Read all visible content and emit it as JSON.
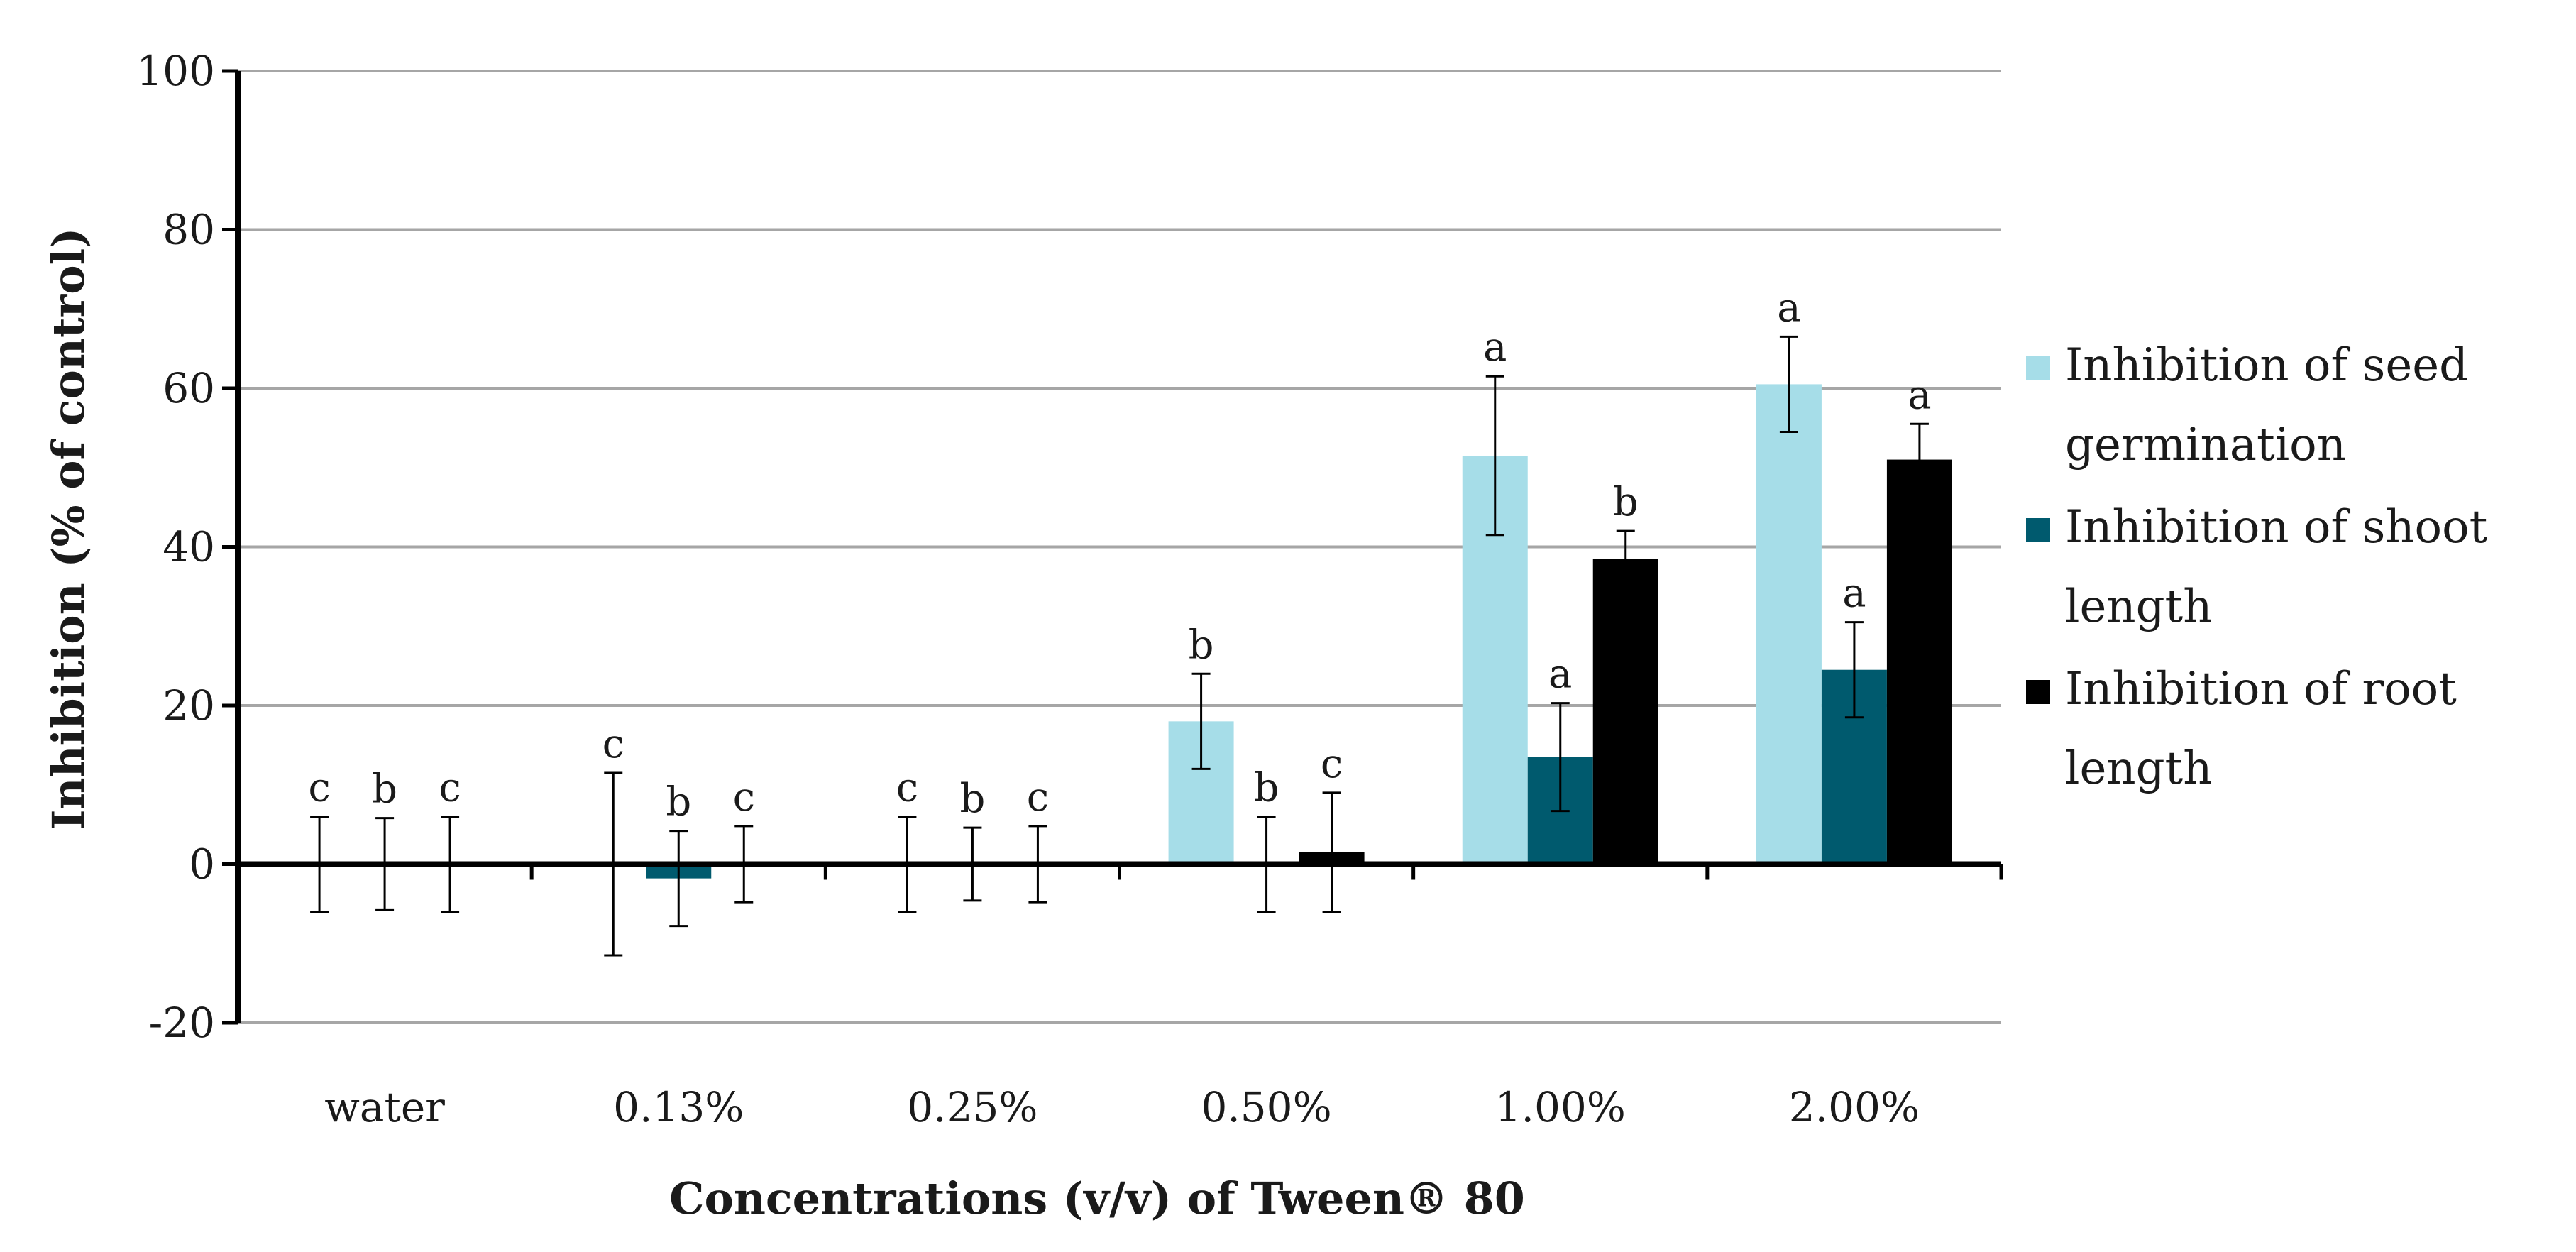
{
  "chart_data": {
    "type": "bar",
    "title": "",
    "xlabel": "Concentrations (v/v) of Tween® 80",
    "ylabel": "Inhibition (% of control)",
    "ylim": [
      -20,
      100
    ],
    "yticks": [
      -20,
      0,
      20,
      40,
      60,
      80,
      100
    ],
    "ytick_labels": [
      "-20",
      "0",
      "20",
      "40",
      "60",
      "80",
      "100"
    ],
    "grid": true,
    "legend_position": "right",
    "categories": [
      "water",
      "0.13%",
      "0.25%",
      "0.50%",
      "1.00%",
      "2.00%"
    ],
    "series": [
      {
        "name": "Inhibition of seed germination",
        "legend_lines": [
          "Inhibition of seed",
          "germination"
        ],
        "color": "#a6dde8",
        "values": [
          0,
          0,
          0,
          18,
          51.5,
          60.5
        ],
        "errors": [
          6,
          11.5,
          6,
          6,
          10,
          6
        ],
        "letters": [
          "c",
          "c",
          "c",
          "b",
          "a",
          "a"
        ]
      },
      {
        "name": "Inhibition of shoot length",
        "legend_lines": [
          "Inhibition of shoot",
          "length"
        ],
        "color": "#005a6e",
        "values": [
          0,
          -1.8,
          0,
          0,
          13.5,
          24.5
        ],
        "errors": [
          5.8,
          6,
          4.6,
          6,
          6.8,
          6
        ],
        "letters": [
          "b",
          "b",
          "b",
          "b",
          "a",
          "a"
        ]
      },
      {
        "name": "Inhibition of root length",
        "legend_lines": [
          "Inhibition of root",
          "length"
        ],
        "color": "#000000",
        "values": [
          0,
          0,
          0,
          1.5,
          38.5,
          51
        ],
        "errors": [
          6,
          4.8,
          4.8,
          7.5,
          3.5,
          4.5
        ],
        "letters": [
          "c",
          "c",
          "c",
          "c",
          "b",
          "a"
        ]
      }
    ]
  }
}
